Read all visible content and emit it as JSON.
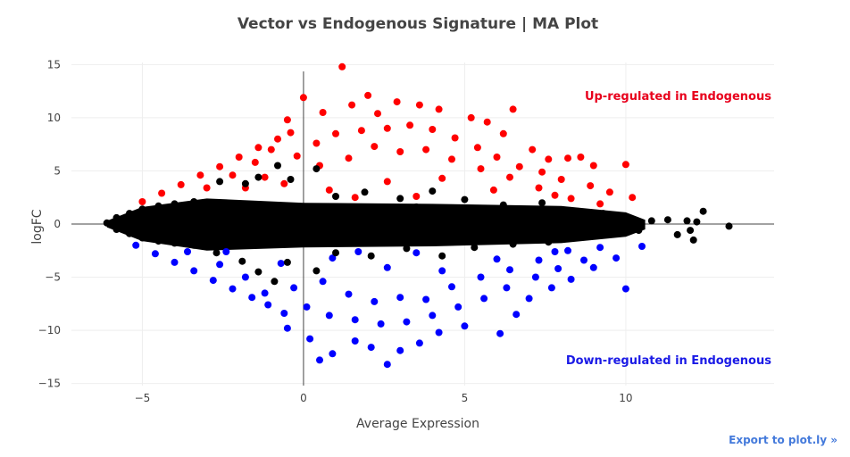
{
  "chart_data": {
    "type": "scatter",
    "title": "Vector vs Endogenous Signature | MA Plot",
    "xlabel": "Average Expression",
    "ylabel": "logFC",
    "xlim": [
      -7.2,
      14.6
    ],
    "ylim": [
      -15.2,
      15.2
    ],
    "xticks": [
      -5,
      0,
      5,
      10
    ],
    "yticks": [
      -15,
      -10,
      -5,
      0,
      5,
      10,
      15
    ],
    "grid": true,
    "zero_lines": true,
    "series": [
      {
        "role": "up",
        "color": "#ff0000",
        "points": [
          [
            -5.0,
            2.1
          ],
          [
            -4.4,
            2.9
          ],
          [
            -3.8,
            3.7
          ],
          [
            -3.2,
            4.6
          ],
          [
            -2.6,
            5.4
          ],
          [
            -2.0,
            6.3
          ],
          [
            -1.4,
            7.2
          ],
          [
            -0.8,
            8.0
          ],
          [
            -0.4,
            8.6
          ],
          [
            -3.0,
            3.4
          ],
          [
            -2.2,
            4.6
          ],
          [
            -1.5,
            5.8
          ],
          [
            -1.0,
            7.0
          ],
          [
            -0.5,
            9.8
          ],
          [
            0.0,
            11.9
          ],
          [
            0.6,
            10.5
          ],
          [
            1.2,
            14.8
          ],
          [
            1.5,
            11.2
          ],
          [
            2.0,
            12.1
          ],
          [
            2.3,
            10.4
          ],
          [
            2.9,
            11.5
          ],
          [
            3.6,
            11.2
          ],
          [
            4.2,
            10.8
          ],
          [
            5.2,
            10.0
          ],
          [
            5.7,
            9.6
          ],
          [
            6.5,
            10.8
          ],
          [
            6.2,
            8.5
          ],
          [
            7.1,
            7.0
          ],
          [
            7.6,
            6.1
          ],
          [
            8.2,
            6.2
          ],
          [
            8.6,
            6.3
          ],
          [
            9.0,
            5.5
          ],
          [
            10.0,
            5.6
          ],
          [
            10.2,
            2.5
          ],
          [
            9.5,
            3.0
          ],
          [
            8.9,
            3.6
          ],
          [
            8.0,
            4.2
          ],
          [
            7.4,
            4.9
          ],
          [
            6.7,
            5.4
          ],
          [
            6.0,
            6.3
          ],
          [
            5.4,
            7.2
          ],
          [
            4.7,
            8.1
          ],
          [
            4.0,
            8.9
          ],
          [
            3.3,
            9.3
          ],
          [
            2.6,
            9.0
          ],
          [
            1.8,
            8.8
          ],
          [
            1.0,
            8.5
          ],
          [
            0.4,
            7.6
          ],
          [
            -0.2,
            6.4
          ],
          [
            -1.8,
            3.4
          ],
          [
            -1.2,
            4.4
          ],
          [
            0.5,
            5.5
          ],
          [
            1.4,
            6.2
          ],
          [
            2.2,
            7.3
          ],
          [
            3.0,
            6.8
          ],
          [
            3.8,
            7.0
          ],
          [
            4.6,
            6.1
          ],
          [
            5.5,
            5.2
          ],
          [
            6.4,
            4.4
          ],
          [
            7.3,
            3.4
          ],
          [
            8.3,
            2.4
          ],
          [
            9.2,
            1.9
          ],
          [
            0.8,
            3.2
          ],
          [
            2.6,
            4.0
          ],
          [
            4.3,
            4.3
          ],
          [
            5.9,
            3.2
          ],
          [
            7.8,
            2.7
          ],
          [
            1.6,
            2.5
          ],
          [
            3.5,
            2.6
          ],
          [
            -0.6,
            3.8
          ]
        ]
      },
      {
        "role": "down",
        "color": "#0000ff",
        "points": [
          [
            -5.2,
            -2.0
          ],
          [
            -4.6,
            -2.8
          ],
          [
            -4.0,
            -3.6
          ],
          [
            -3.4,
            -4.4
          ],
          [
            -2.8,
            -5.3
          ],
          [
            -2.2,
            -6.1
          ],
          [
            -1.6,
            -6.9
          ],
          [
            -1.1,
            -7.6
          ],
          [
            -0.6,
            -8.4
          ],
          [
            -3.6,
            -2.6
          ],
          [
            -2.6,
            -3.8
          ],
          [
            -1.8,
            -5.0
          ],
          [
            -1.2,
            -6.5
          ],
          [
            -0.5,
            -9.8
          ],
          [
            0.2,
            -10.8
          ],
          [
            0.5,
            -12.8
          ],
          [
            0.9,
            -12.2
          ],
          [
            1.6,
            -11.0
          ],
          [
            2.1,
            -11.6
          ],
          [
            2.6,
            -13.2
          ],
          [
            3.0,
            -11.9
          ],
          [
            3.6,
            -11.2
          ],
          [
            4.2,
            -10.2
          ],
          [
            5.0,
            -9.6
          ],
          [
            6.1,
            -10.3
          ],
          [
            6.6,
            -8.5
          ],
          [
            7.0,
            -7.0
          ],
          [
            7.7,
            -6.0
          ],
          [
            8.3,
            -5.2
          ],
          [
            9.0,
            -4.1
          ],
          [
            10.0,
            -6.1
          ],
          [
            9.7,
            -3.2
          ],
          [
            10.5,
            -2.1
          ],
          [
            8.7,
            -3.4
          ],
          [
            7.9,
            -4.2
          ],
          [
            7.2,
            -5.0
          ],
          [
            6.3,
            -6.0
          ],
          [
            5.6,
            -7.0
          ],
          [
            4.8,
            -7.8
          ],
          [
            4.0,
            -8.6
          ],
          [
            3.2,
            -9.2
          ],
          [
            2.4,
            -9.4
          ],
          [
            1.6,
            -9.0
          ],
          [
            0.8,
            -8.6
          ],
          [
            0.1,
            -7.8
          ],
          [
            -0.3,
            -6.0
          ],
          [
            0.6,
            -5.4
          ],
          [
            1.4,
            -6.6
          ],
          [
            2.2,
            -7.3
          ],
          [
            3.0,
            -6.9
          ],
          [
            3.8,
            -7.1
          ],
          [
            4.6,
            -5.9
          ],
          [
            5.5,
            -5.0
          ],
          [
            6.4,
            -4.3
          ],
          [
            7.3,
            -3.4
          ],
          [
            8.2,
            -2.5
          ],
          [
            9.2,
            -2.2
          ],
          [
            0.9,
            -3.2
          ],
          [
            2.6,
            -4.1
          ],
          [
            4.3,
            -4.4
          ],
          [
            6.0,
            -3.3
          ],
          [
            7.8,
            -2.6
          ],
          [
            1.7,
            -2.6
          ],
          [
            3.5,
            -2.7
          ],
          [
            -0.7,
            -3.7
          ],
          [
            -2.4,
            -2.6
          ]
        ]
      },
      {
        "role": "not-significant",
        "color": "#000000",
        "points": [
          [
            -6.1,
            0.1
          ],
          [
            -5.8,
            0.6
          ],
          [
            -5.8,
            -0.5
          ],
          [
            -5.4,
            1.0
          ],
          [
            -5.4,
            -0.9
          ],
          [
            -5.0,
            1.4
          ],
          [
            -5.0,
            -1.3
          ],
          [
            -4.5,
            1.7
          ],
          [
            -4.5,
            -1.6
          ],
          [
            -4.0,
            1.9
          ],
          [
            -4.0,
            -1.8
          ],
          [
            -3.4,
            2.1
          ],
          [
            -3.4,
            -2.0
          ],
          [
            -2.8,
            2.0
          ],
          [
            -2.8,
            -1.9
          ],
          [
            -2.6,
            4.0
          ],
          [
            -1.8,
            3.8
          ],
          [
            -1.4,
            4.4
          ],
          [
            -0.8,
            5.5
          ],
          [
            -0.4,
            4.2
          ],
          [
            0.4,
            5.2
          ],
          [
            -2.7,
            -2.7
          ],
          [
            -1.9,
            -3.5
          ],
          [
            -1.4,
            -4.5
          ],
          [
            -0.9,
            -5.4
          ],
          [
            -0.5,
            -3.6
          ],
          [
            0.4,
            -4.4
          ],
          [
            1.0,
            2.6
          ],
          [
            1.9,
            3.0
          ],
          [
            3.0,
            2.4
          ],
          [
            4.0,
            3.1
          ],
          [
            5.0,
            2.3
          ],
          [
            6.2,
            1.8
          ],
          [
            7.4,
            2.0
          ],
          [
            8.5,
            1.2
          ],
          [
            9.3,
            1.0
          ],
          [
            10.0,
            0.6
          ],
          [
            10.8,
            0.3
          ],
          [
            11.3,
            0.4
          ],
          [
            11.9,
            0.3
          ],
          [
            12.2,
            0.2
          ],
          [
            12.0,
            -0.6
          ],
          [
            12.4,
            1.2
          ],
          [
            13.2,
            -0.2
          ],
          [
            1.0,
            -2.7
          ],
          [
            2.1,
            -3.0
          ],
          [
            3.2,
            -2.3
          ],
          [
            4.3,
            -3.0
          ],
          [
            5.3,
            -2.2
          ],
          [
            6.5,
            -1.9
          ],
          [
            7.6,
            -1.7
          ],
          [
            8.8,
            -1.2
          ],
          [
            9.6,
            -0.9
          ],
          [
            10.4,
            -0.6
          ],
          [
            11.6,
            -1.0
          ],
          [
            12.1,
            -1.5
          ],
          [
            0.0,
            1.3
          ],
          [
            0.0,
            -1.2
          ],
          [
            1.5,
            1.5
          ],
          [
            1.5,
            -1.4
          ],
          [
            2.5,
            1.2
          ],
          [
            2.5,
            -1.2
          ],
          [
            3.5,
            1.6
          ],
          [
            3.5,
            -1.5
          ],
          [
            4.5,
            1.3
          ],
          [
            4.5,
            -1.3
          ],
          [
            5.5,
            1.1
          ],
          [
            5.5,
            -1.0
          ],
          [
            6.5,
            1.0
          ],
          [
            6.5,
            -0.9
          ],
          [
            7.5,
            0.9
          ],
          [
            7.5,
            -0.8
          ],
          [
            -1.0,
            1.5
          ],
          [
            -1.0,
            -1.4
          ],
          [
            -2.0,
            1.8
          ],
          [
            -2.0,
            -1.7
          ],
          [
            -3.0,
            1.6
          ],
          [
            -3.0,
            -1.6
          ],
          [
            8.5,
            -0.7
          ],
          [
            9.0,
            0.8
          ]
        ]
      }
    ],
    "annotations": [
      {
        "text": "Up-regulated in Endogenous",
        "color": "#e8001c"
      },
      {
        "text": "Down-regulated in Endogenous",
        "color": "#1a1ae6"
      }
    ]
  },
  "export_link": {
    "label": "Export to plot.ly »"
  }
}
